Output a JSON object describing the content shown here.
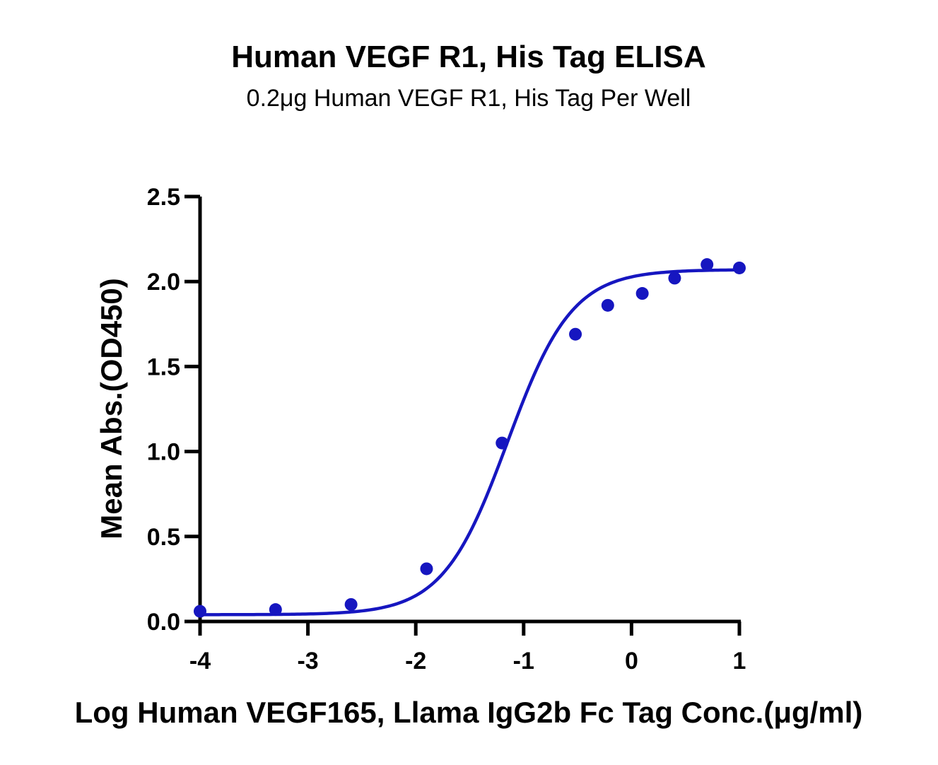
{
  "chart_data": {
    "type": "scatter",
    "title": "Human VEGF R1, His Tag ELISA",
    "subtitle": "0.2μg Human VEGF R1, His Tag Per Well",
    "xlabel": "Log Human VEGF165, Llama IgG2b Fc Tag Conc.(μg/ml)",
    "ylabel": "Mean Abs.(OD450)",
    "xlim": [
      -4,
      1
    ],
    "ylim": [
      0,
      2.5
    ],
    "x_ticks": [
      -4,
      -3,
      -2,
      -1,
      0,
      1
    ],
    "x_tick_labels": [
      "-4",
      "-3",
      "-2",
      "-1",
      "0",
      "1"
    ],
    "y_ticks": [
      0,
      0.5,
      1,
      1.5,
      2,
      2.5
    ],
    "y_tick_labels": [
      "0.0",
      "0.5",
      "1.0",
      "1.5",
      "2.0",
      "2.5"
    ],
    "grid": false,
    "series": [
      {
        "color": "#1616c0",
        "x": [
          -4.0,
          -3.3,
          -2.6,
          -1.9,
          -1.2,
          -0.52,
          -0.22,
          0.1,
          0.4,
          0.7,
          1.0
        ],
        "y": [
          0.06,
          0.07,
          0.1,
          0.31,
          1.05,
          1.69,
          1.86,
          1.93,
          2.02,
          2.1,
          2.08
        ],
        "fit": {
          "model": "4PL",
          "bottom": 0.04,
          "top": 2.07,
          "logEC50": -1.15,
          "hill": 1.45
        }
      }
    ]
  }
}
